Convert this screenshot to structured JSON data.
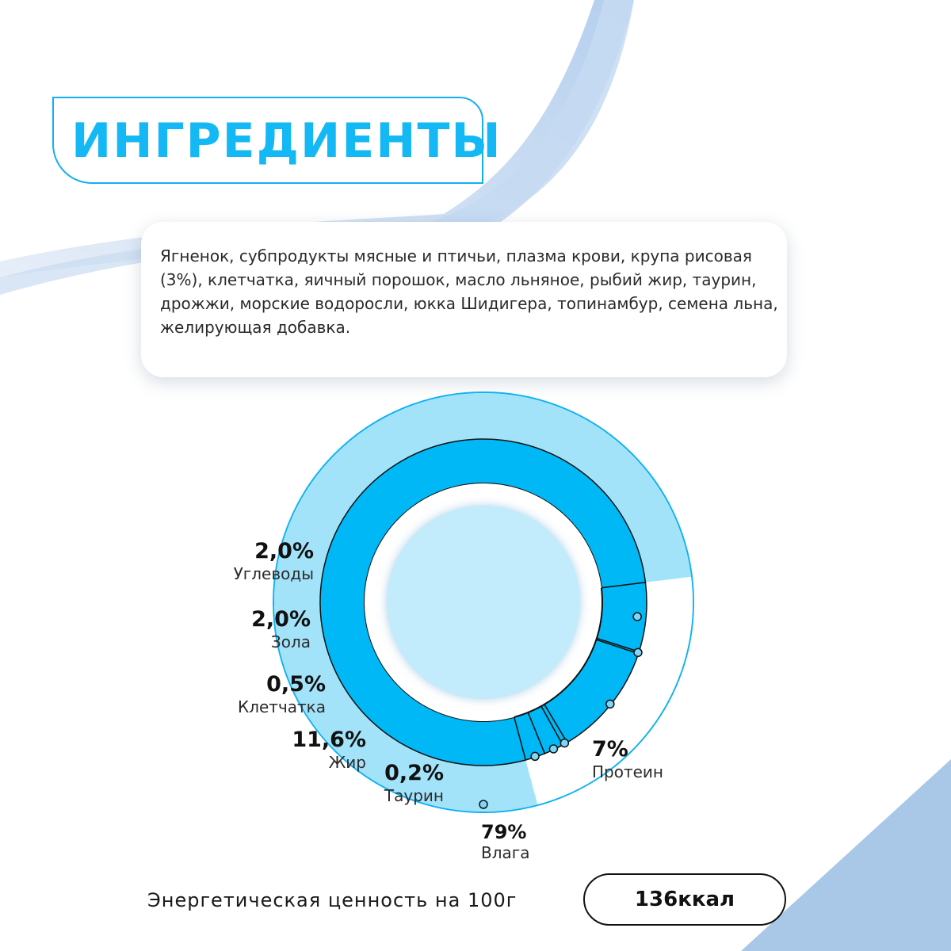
{
  "title": "ИНГРЕДИЕНТЫ",
  "ingredients": "Ягненок, субпродукты мясные и птичьи, плазма крови, крупа рисовая (3%), клетчатка, яичный порошок, масло льняное, рыбий жир, таурин, дрожжи, морские водоросли, юкка Шидигера, топинамбур, семена льна, желирующая добавка.",
  "chart_data": {
    "type": "pie",
    "title": "",
    "slices": [
      {
        "name": "Влага",
        "value": 79,
        "label": "79%"
      },
      {
        "name": "Протеин",
        "value": 7,
        "label": "7%"
      },
      {
        "name": "Таурин",
        "value": 0.2,
        "label": "0,2%"
      },
      {
        "name": "Жир",
        "value": 11.6,
        "label": "11,6%"
      },
      {
        "name": "Клетчатка",
        "value": 0.5,
        "label": "0,5%"
      },
      {
        "name": "Зола",
        "value": 2.0,
        "label": "2,0%"
      },
      {
        "name": "Углеводы",
        "value": 2.0,
        "label": "2,0%"
      }
    ],
    "colors": {
      "outer": "#a3e3fa",
      "inner": "#00b8f5",
      "center": "#c2ebfb",
      "line": "#111111",
      "ring": "#0fb2f2"
    }
  },
  "energy": {
    "label": "Энергетическая ценность на 100г",
    "value": "136ккал"
  }
}
